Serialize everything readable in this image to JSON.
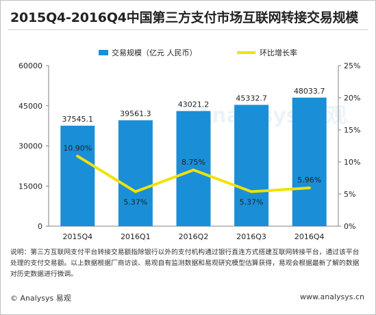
{
  "title": "2015Q4-2016Q4中国第三方支付市场互联网转接交易规模",
  "note": "说明：第三方互联网支付平台转接交易额指除银行以外的支付机构通过银行直连方式搭建互联网转接平台，通过该平台处理的支付交易额。以上数据根据厂商访谈、易观自有监测数据和易观研究模型估算获得，易观会根据最新了解的数据对历史数据进行微调。",
  "footer": {
    "copyright": "© Analysys 易观",
    "url": "www.analysys.cn"
  },
  "watermark": "Analysys 易观",
  "colors": {
    "bar": "#1a8fd8",
    "line": "#f2e100",
    "axis": "#808080",
    "text": "#222222"
  },
  "chart_data": {
    "type": "bar",
    "categories": [
      "2015Q4",
      "2016Q1",
      "2016Q2",
      "2016Q3",
      "2016Q4"
    ],
    "series": [
      {
        "name": "交易规模（亿元 人民币）",
        "type": "bar",
        "axis": "left",
        "values": [
          37545.1,
          39561.3,
          43021.2,
          45332.7,
          48033.7
        ],
        "labels": [
          "37545.1",
          "39561.3",
          "43021.2",
          "45332.7",
          "48033.7"
        ]
      },
      {
        "name": "环比增长率",
        "type": "line",
        "axis": "right",
        "values": [
          10.9,
          5.37,
          8.75,
          5.37,
          5.96
        ],
        "labels": [
          "10.90%",
          "5.37%",
          "8.75%",
          "5.37%",
          "5.96%"
        ]
      }
    ],
    "y_left": {
      "min": 0,
      "max": 60000,
      "ticks": [
        0,
        15000,
        30000,
        45000,
        60000
      ],
      "tick_labels": [
        "0",
        "15000",
        "30000",
        "45000",
        "60000"
      ]
    },
    "y_right": {
      "min": 0,
      "max": 25,
      "ticks": [
        0,
        5,
        10,
        15,
        20,
        25
      ],
      "tick_labels": [
        "0%",
        "5%",
        "10%",
        "15%",
        "20%",
        "25%"
      ]
    },
    "grid": false,
    "legend": "top"
  }
}
